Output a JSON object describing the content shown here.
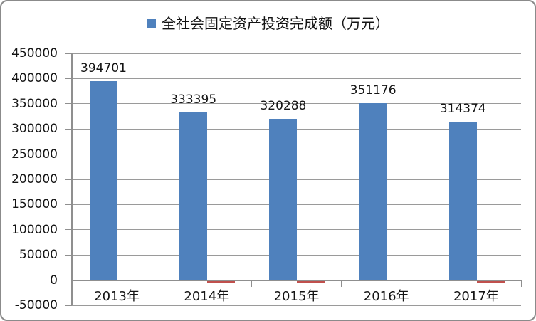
{
  "window": {
    "background": "#ffffff",
    "border_color": "#8b8b8b"
  },
  "legend": {
    "marker_color": "#4f81bd",
    "label": "全社会固定资产投资完成额（万元）"
  },
  "colors": {
    "grid": "#9a9a9a",
    "axis": "#8f8f8f",
    "text": "#141414"
  },
  "chart_data": {
    "type": "bar",
    "title": "全社会固定资产投资完成额（万元）",
    "categories": [
      "2013年",
      "2014年",
      "2015年",
      "2016年",
      "2017年"
    ],
    "series": [
      {
        "name": "全社会固定资产投资完成额（万元）",
        "color": "#4f81bd",
        "values": [
          394701,
          333395,
          320288,
          351176,
          314374
        ],
        "data_labels": [
          "394701",
          "333395",
          "320288",
          "351176",
          "314374"
        ],
        "labels_visible": true
      },
      {
        "name": "",
        "color": "#c0504d",
        "values": [
          0,
          -2000,
          -2000,
          0,
          -2000
        ],
        "labels_visible": false
      }
    ],
    "xlabel": "",
    "ylabel": "",
    "ylim": [
      -50000,
      450000
    ],
    "ytick_step": 50000,
    "yticks": [
      "450000",
      "400000",
      "350000",
      "300000",
      "250000",
      "200000",
      "150000",
      "100000",
      "50000",
      "0",
      "-50000"
    ],
    "grid": true,
    "legend_position": "top"
  }
}
